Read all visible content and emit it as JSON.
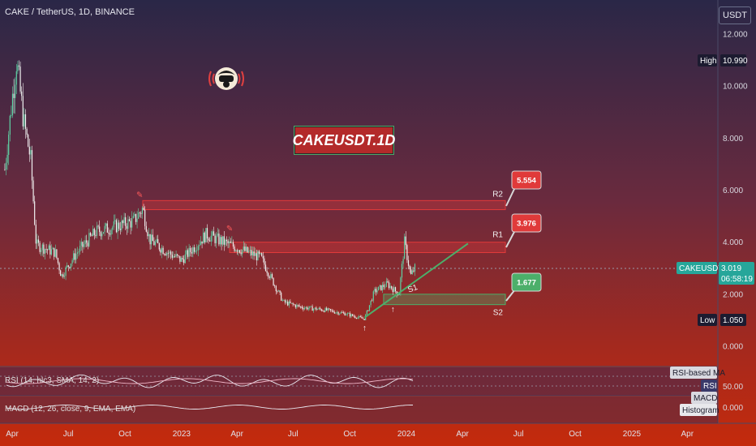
{
  "header": {
    "symbol_line": "CAKE / TetherUS, 1D, BINANCE",
    "currency_button": "USDT"
  },
  "overlay": {
    "banner_text": "CAKEUSDT.1D",
    "logo_icon": "astronaut-broadcast-icon"
  },
  "price_axis": {
    "ticks": [
      "12.000",
      "10.000",
      "8.000",
      "6.000",
      "4.000",
      "2.000",
      "0.000"
    ],
    "tick_values": [
      12,
      10,
      8,
      6,
      4,
      2,
      0
    ],
    "high_label": "High",
    "high_value": "10.990",
    "low_label": "Low",
    "low_value": "1.050",
    "symbol_tag": "CAKEUSDT",
    "last_price": "3.019",
    "countdown": "06:58:19",
    "rsi_tick": "50.00",
    "macd_tick": "0.000"
  },
  "time_axis": {
    "labels": [
      "Apr",
      "Jul",
      "Oct",
      "2023",
      "Apr",
      "Jul",
      "Oct",
      "2024",
      "Apr",
      "Jul",
      "Oct",
      "2025",
      "Apr"
    ]
  },
  "levels": {
    "r2": {
      "label": "R2",
      "value": "5.554"
    },
    "r1": {
      "label": "R1",
      "value": "3.976"
    },
    "s1": {
      "label": "S1"
    },
    "s2": {
      "label": "S2",
      "value": "1.677"
    }
  },
  "indicators": {
    "rsi_legend": "RSI (14, hlc3, SMA, 14, 2)",
    "rsi_ma_label": "RSI-based MA",
    "rsi_label": "RSI",
    "macd_legend": "MACD (12, 26, close, 9, EMA, EMA)",
    "macd_label": "MACD",
    "histogram_label": "Histogram"
  },
  "colors": {
    "bg_top": "#2a2747",
    "bg_bottom": "#c42a0c",
    "zone_red": "#e03a3a",
    "zone_green": "#4caf6a",
    "candle_up": "#5fd3a6",
    "candle_down": "#f0f0f0",
    "trendline": "#4caf6a",
    "price_tag": "#26a69a"
  },
  "chart_data": {
    "type": "candlestick",
    "ylim": [
      -0.8,
      12.5
    ],
    "x_axis": [
      "Apr 2022",
      "Jul 2022",
      "Oct 2022",
      "2023",
      "Apr 2023",
      "Jul 2023",
      "Oct 2023",
      "2024",
      "Apr 2024",
      "Jul 2024",
      "Oct 2024",
      "2025",
      "Apr 2025"
    ],
    "price_path": [
      {
        "date": "2022-03-20",
        "close": 6.8
      },
      {
        "date": "2022-04-01",
        "close": 9.5
      },
      {
        "date": "2022-04-08",
        "close": 10.99
      },
      {
        "date": "2022-04-20",
        "close": 8.6
      },
      {
        "date": "2022-05-01",
        "close": 7.2
      },
      {
        "date": "2022-05-10",
        "close": 3.9
      },
      {
        "date": "2022-06-10",
        "close": 3.6
      },
      {
        "date": "2022-06-20",
        "close": 2.7
      },
      {
        "date": "2022-07-15",
        "close": 3.6
      },
      {
        "date": "2022-08-15",
        "close": 4.4
      },
      {
        "date": "2022-09-15",
        "close": 4.6
      },
      {
        "date": "2022-10-15",
        "close": 4.8
      },
      {
        "date": "2022-10-30",
        "close": 5.3
      },
      {
        "date": "2022-11-10",
        "close": 4.1
      },
      {
        "date": "2022-12-10",
        "close": 3.6
      },
      {
        "date": "2023-01-01",
        "close": 3.3
      },
      {
        "date": "2023-02-10",
        "close": 4.3
      },
      {
        "date": "2023-03-10",
        "close": 4.0
      },
      {
        "date": "2023-04-10",
        "close": 3.7
      },
      {
        "date": "2023-05-10",
        "close": 3.4
      },
      {
        "date": "2023-06-15",
        "close": 1.7
      },
      {
        "date": "2023-07-15",
        "close": 1.5
      },
      {
        "date": "2023-08-20",
        "close": 1.4
      },
      {
        "date": "2023-09-25",
        "close": 1.25
      },
      {
        "date": "2023-10-15",
        "close": 1.1
      },
      {
        "date": "2023-10-25",
        "close": 1.05
      },
      {
        "date": "2023-11-10",
        "close": 2.1
      },
      {
        "date": "2023-12-01",
        "close": 2.4
      },
      {
        "date": "2023-12-20",
        "close": 2.0
      },
      {
        "date": "2023-12-29",
        "close": 4.0
      },
      {
        "date": "2024-01-08",
        "close": 2.7
      },
      {
        "date": "2024-01-15",
        "close": 3.019
      }
    ],
    "zones": [
      {
        "name": "R2",
        "top": 5.6,
        "bottom": 5.25
      },
      {
        "name": "R1",
        "top": 4.0,
        "bottom": 3.6
      },
      {
        "name": "S2",
        "top": 2.0,
        "bottom": 1.6
      }
    ],
    "trendline": [
      {
        "date": "2023-10-25",
        "price": 1.1
      },
      {
        "date": "2024-04-10",
        "price": 3.95
      }
    ],
    "high": 10.99,
    "low": 1.05,
    "last": 3.019,
    "rsi_pane": {
      "ticks": [
        "50.00"
      ]
    },
    "macd_pane": {
      "ticks": [
        "0.000"
      ]
    }
  }
}
